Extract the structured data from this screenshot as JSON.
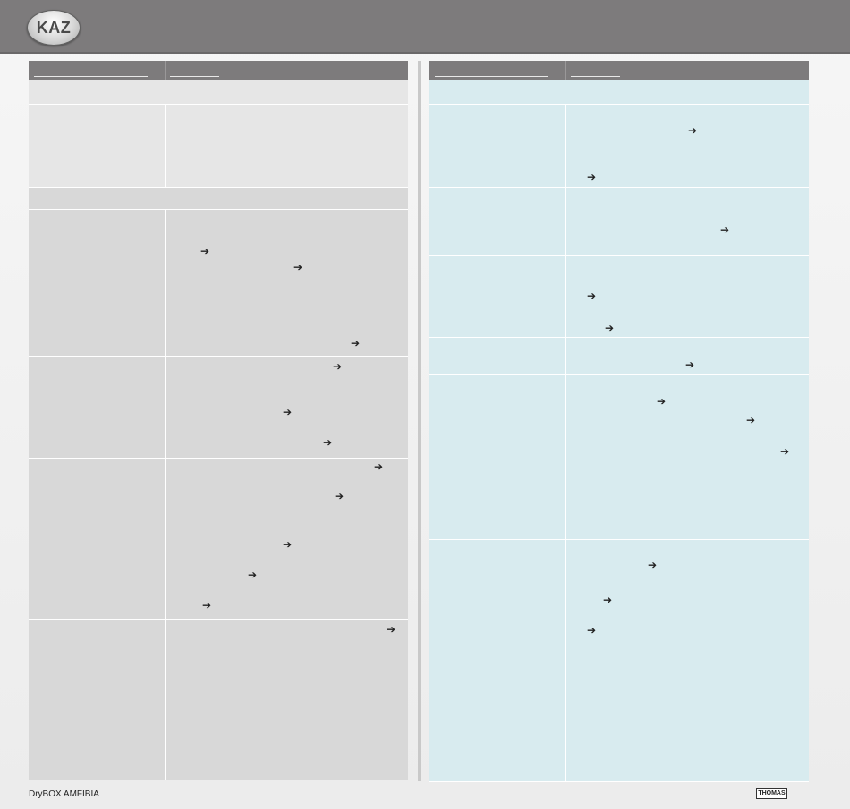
{
  "header": {
    "logo_text": "KAZ"
  },
  "footer": {
    "product_name": "DryBOX AMFIBIA",
    "brand_logo_text": "THOMAS"
  },
  "left_table": {
    "header_col1": "",
    "header_col2": ""
  },
  "right_table": {
    "header_col1": "",
    "header_col2": ""
  },
  "icons": {
    "arrow": "right-arrow-icon",
    "logo": "kaz-logo"
  },
  "colors": {
    "header": "#7d7b7c",
    "left_light": "#e6e6e6",
    "left_dark": "#d8d8d8",
    "right": "#d8ebef"
  }
}
